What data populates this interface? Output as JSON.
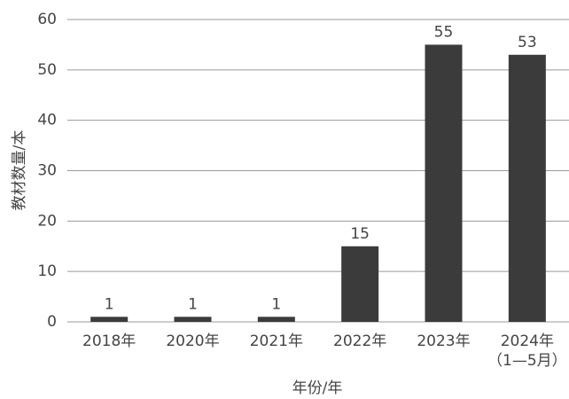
{
  "chart_data": {
    "type": "bar",
    "categories": [
      "2018年",
      "2020年",
      "2021年",
      "2022年",
      "2023年",
      "2024年\n（1—5月）"
    ],
    "values": [
      1,
      1,
      1,
      15,
      55,
      53
    ],
    "color": "#3b3b3b",
    "y_label": "教材数量/本",
    "x_label": "年份/年",
    "ylim": [
      0,
      60
    ],
    "yticks": [
      0,
      10,
      20,
      30,
      40,
      50,
      60
    ],
    "grid": true
  }
}
